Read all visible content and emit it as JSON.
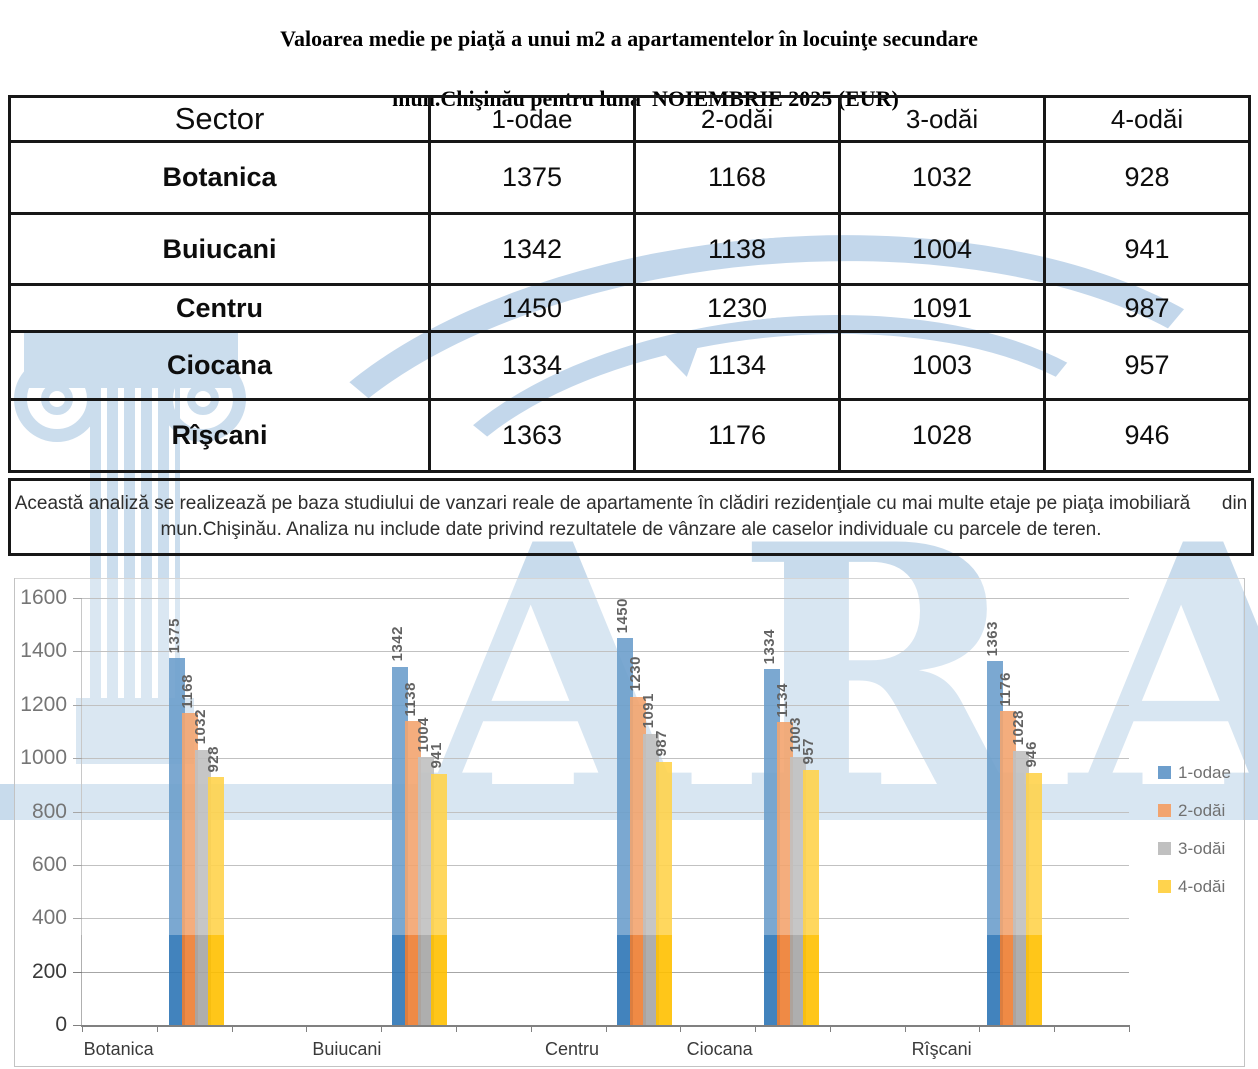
{
  "title": {
    "line1": "Valoarea medie pe piaţă a unui m2 a apartamentelor în locuinţe secundare",
    "line2": "mun.Chişinău pentru luna  NOIEMBRIE 2025 (EUR)"
  },
  "table": {
    "headers": [
      "Sector",
      "1-odae",
      "2-odăi",
      "3-odăi",
      "4-odăi"
    ],
    "rows": [
      {
        "sector": "Botanica",
        "values": [
          "1375",
          "1168",
          "1032",
          "928"
        ]
      },
      {
        "sector": "Buiucani",
        "values": [
          "1342",
          "1138",
          "1004",
          "941"
        ]
      },
      {
        "sector": "Centru",
        "values": [
          "1450",
          "1230",
          "1091",
          "987"
        ]
      },
      {
        "sector": "Ciocana",
        "values": [
          "1334",
          "1134",
          "1003",
          "957"
        ]
      },
      {
        "sector": "Rîşcani",
        "values": [
          "1363",
          "1176",
          "1028",
          "946"
        ]
      }
    ]
  },
  "note": {
    "text": "Această analiză se realizează pe baza studiului de vanzari reale de apartamente în clădiri rezidenţiale cu mai multe etaje pe piaţa imobiliară      din\nmun.Chişinău. Analiza nu include date privind rezultatele de vânzare ale caselor individuale cu parcele de teren."
  },
  "watermark": {
    "text": "ARA",
    "color": "#c8dbec"
  },
  "chart_data": {
    "type": "bar",
    "categories": [
      "Botanica",
      "Buiucani",
      "Centru",
      "Ciocana",
      "Rîşcani"
    ],
    "series": [
      {
        "name": "1-odae",
        "color": "#2E75B6",
        "values": [
          1375,
          1342,
          1450,
          1334,
          1363
        ]
      },
      {
        "name": "2-odăi",
        "color": "#ED7D31",
        "values": [
          1168,
          1138,
          1230,
          1134,
          1176
        ]
      },
      {
        "name": "3-odăi",
        "color": "#A5A5A5",
        "values": [
          1032,
          1004,
          1091,
          1003,
          1028
        ]
      },
      {
        "name": "4-odăi",
        "color": "#FFC000",
        "values": [
          928,
          941,
          987,
          957,
          946
        ]
      }
    ],
    "title": "",
    "xlabel": "",
    "ylabel": "",
    "ylim": [
      0,
      1600
    ],
    "ytick_step": 200,
    "yticks": [
      0,
      200,
      400,
      600,
      800,
      1000,
      1200,
      1400,
      1600
    ],
    "grid": true,
    "bar_labels": true,
    "legend_position": "right",
    "cluster_left_pct": [
      8.3,
      29.6,
      51.1,
      65.1,
      86.4
    ],
    "category_label_center_pct": [
      3.5,
      25.3,
      46.8,
      60.9,
      82.1
    ]
  }
}
